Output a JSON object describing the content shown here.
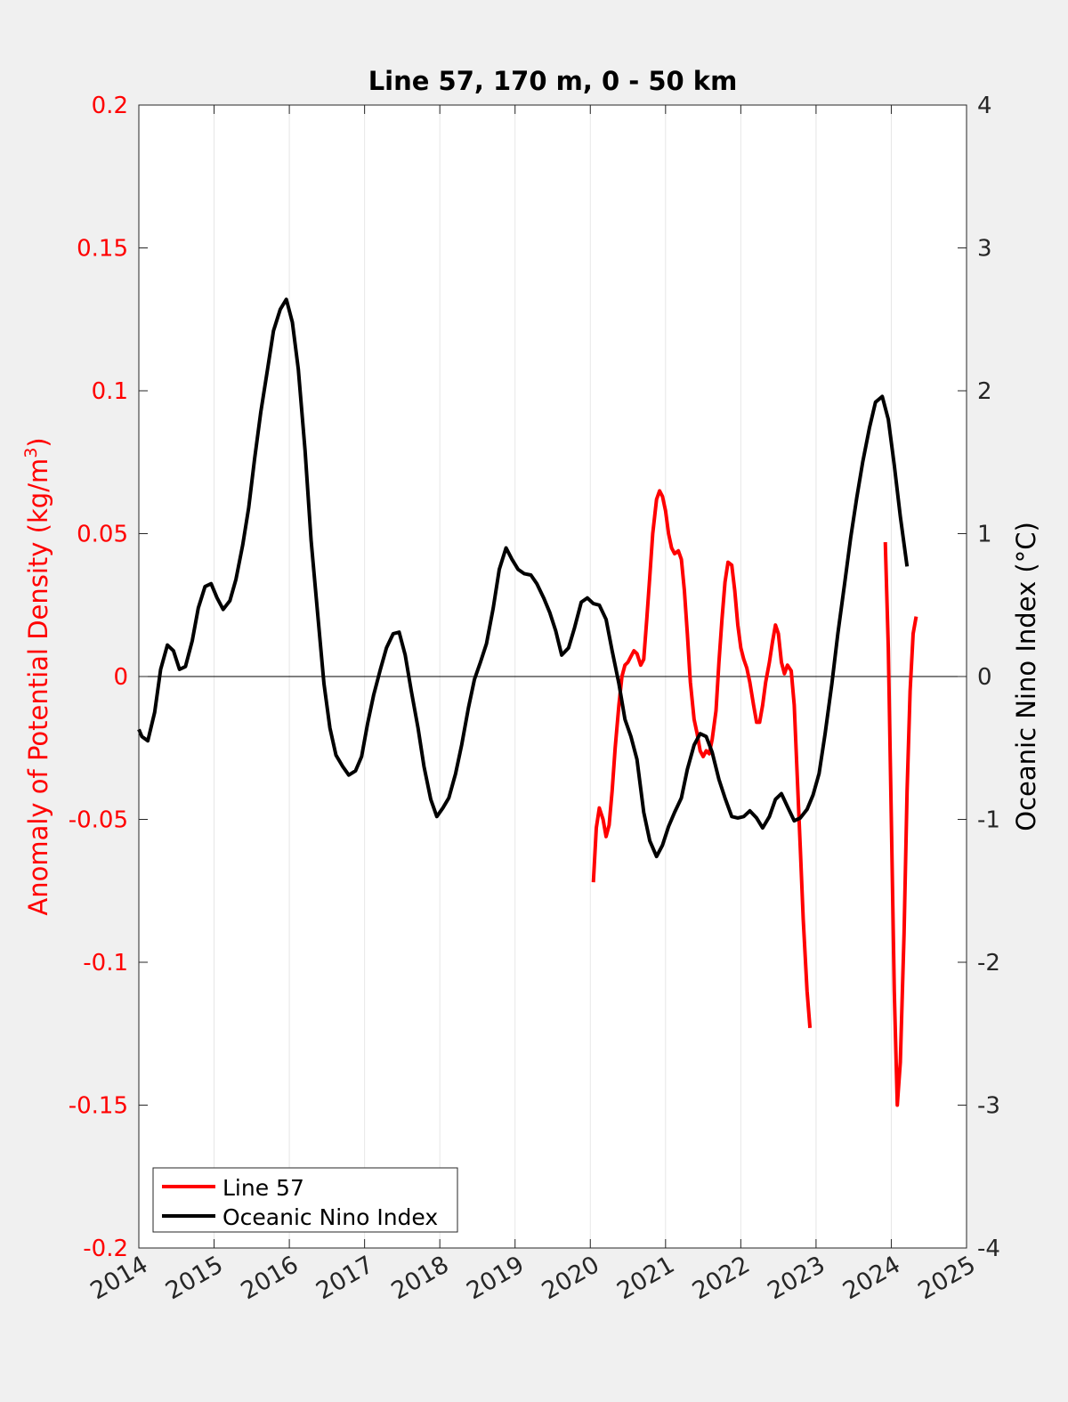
{
  "chart_data": {
    "type": "line",
    "title": "Line 57, 170 m, 0 - 50 km",
    "xlabel": "",
    "xlim": [
      2014,
      2025
    ],
    "xticks": [
      "2014",
      "2015",
      "2016",
      "2017",
      "2018",
      "2019",
      "2020",
      "2021",
      "2022",
      "2023",
      "2024",
      "2025"
    ],
    "y_left": {
      "label": "Anomaly of Potential Density (kg/m",
      "label_sup": "3",
      "label_end": ")",
      "ylim": [
        -0.2,
        0.2
      ],
      "ticks": [
        "-0.2",
        "-0.15",
        "-0.1",
        "-0.05",
        "0",
        "0.05",
        "0.1",
        "0.15",
        "0.2"
      ],
      "color": "#ff0000"
    },
    "y_right": {
      "label": "Oceanic Nino Index (°C)",
      "ylim": [
        -4,
        4
      ],
      "ticks": [
        "-4",
        "-3",
        "-2",
        "-1",
        "0",
        "1",
        "2",
        "3",
        "4"
      ],
      "color": "#000000"
    },
    "grid": "vertical",
    "legend_position": "bottom-left",
    "series": [
      {
        "name": "Line 57",
        "axis": "left",
        "color": "#ff0000",
        "segments": [
          [
            [
              2020.04,
              -0.072
            ],
            [
              2020.08,
              -0.053
            ],
            [
              2020.12,
              -0.046
            ],
            [
              2020.17,
              -0.05
            ],
            [
              2020.21,
              -0.056
            ],
            [
              2020.25,
              -0.052
            ],
            [
              2020.29,
              -0.04
            ],
            [
              2020.33,
              -0.025
            ],
            [
              2020.38,
              -0.01
            ],
            [
              2020.42,
              0.0
            ],
            [
              2020.46,
              0.004
            ],
            [
              2020.5,
              0.005
            ],
            [
              2020.54,
              0.007
            ],
            [
              2020.58,
              0.009
            ],
            [
              2020.62,
              0.008
            ],
            [
              2020.67,
              0.004
            ],
            [
              2020.71,
              0.006
            ],
            [
              2020.75,
              0.02
            ],
            [
              2020.79,
              0.035
            ],
            [
              2020.83,
              0.05
            ],
            [
              2020.88,
              0.062
            ],
            [
              2020.92,
              0.065
            ],
            [
              2020.96,
              0.063
            ],
            [
              2021.0,
              0.058
            ],
            [
              2021.04,
              0.05
            ],
            [
              2021.08,
              0.045
            ],
            [
              2021.12,
              0.043
            ],
            [
              2021.17,
              0.044
            ],
            [
              2021.21,
              0.041
            ],
            [
              2021.25,
              0.03
            ],
            [
              2021.29,
              0.015
            ],
            [
              2021.33,
              -0.002
            ],
            [
              2021.38,
              -0.015
            ],
            [
              2021.42,
              -0.02
            ],
            [
              2021.46,
              -0.026
            ],
            [
              2021.5,
              -0.028
            ],
            [
              2021.54,
              -0.026
            ],
            [
              2021.58,
              -0.027
            ],
            [
              2021.62,
              -0.022
            ],
            [
              2021.67,
              -0.012
            ],
            [
              2021.71,
              0.005
            ],
            [
              2021.75,
              0.02
            ],
            [
              2021.79,
              0.033
            ],
            [
              2021.83,
              0.04
            ],
            [
              2021.88,
              0.039
            ],
            [
              2021.92,
              0.03
            ],
            [
              2021.96,
              0.018
            ],
            [
              2022.0,
              0.01
            ],
            [
              2022.04,
              0.006
            ],
            [
              2022.08,
              0.003
            ],
            [
              2022.12,
              -0.002
            ],
            [
              2022.17,
              -0.01
            ],
            [
              2022.21,
              -0.016
            ],
            [
              2022.25,
              -0.016
            ],
            [
              2022.29,
              -0.01
            ],
            [
              2022.33,
              -0.002
            ],
            [
              2022.38,
              0.005
            ],
            [
              2022.42,
              0.012
            ],
            [
              2022.46,
              0.018
            ],
            [
              2022.5,
              0.015
            ],
            [
              2022.54,
              0.005
            ],
            [
              2022.58,
              0.001
            ],
            [
              2022.62,
              0.004
            ],
            [
              2022.67,
              0.002
            ],
            [
              2022.71,
              -0.01
            ],
            [
              2022.75,
              -0.035
            ],
            [
              2022.79,
              -0.06
            ],
            [
              2022.83,
              -0.085
            ],
            [
              2022.88,
              -0.11
            ],
            [
              2022.92,
              -0.123
            ]
          ],
          [
            [
              2023.92,
              0.047
            ],
            [
              2023.96,
              0.01
            ],
            [
              2024.0,
              -0.05
            ],
            [
              2024.04,
              -0.11
            ],
            [
              2024.08,
              -0.15
            ],
            [
              2024.12,
              -0.135
            ],
            [
              2024.17,
              -0.09
            ],
            [
              2024.21,
              -0.04
            ],
            [
              2024.25,
              -0.005
            ],
            [
              2024.29,
              0.015
            ],
            [
              2024.33,
              0.021
            ]
          ]
        ]
      },
      {
        "name": "Oceanic Nino Index",
        "axis": "right",
        "color": "#000000",
        "segments": [
          [
            [
              2014.0,
              -0.37
            ],
            [
              2014.04,
              -0.42
            ],
            [
              2014.12,
              -0.45
            ],
            [
              2014.21,
              -0.25
            ],
            [
              2014.29,
              0.05
            ],
            [
              2014.38,
              0.22
            ],
            [
              2014.46,
              0.18
            ],
            [
              2014.54,
              0.05
            ],
            [
              2014.62,
              0.07
            ],
            [
              2014.71,
              0.25
            ],
            [
              2014.79,
              0.48
            ],
            [
              2014.88,
              0.63
            ],
            [
              2014.96,
              0.65
            ],
            [
              2015.04,
              0.55
            ],
            [
              2015.12,
              0.47
            ],
            [
              2015.21,
              0.53
            ],
            [
              2015.29,
              0.68
            ],
            [
              2015.38,
              0.92
            ],
            [
              2015.46,
              1.18
            ],
            [
              2015.54,
              1.53
            ],
            [
              2015.62,
              1.85
            ],
            [
              2015.71,
              2.15
            ],
            [
              2015.79,
              2.42
            ],
            [
              2015.88,
              2.57
            ],
            [
              2015.96,
              2.64
            ],
            [
              2016.04,
              2.48
            ],
            [
              2016.12,
              2.15
            ],
            [
              2016.21,
              1.58
            ],
            [
              2016.29,
              0.95
            ],
            [
              2016.38,
              0.42
            ],
            [
              2016.46,
              -0.05
            ],
            [
              2016.54,
              -0.36
            ],
            [
              2016.62,
              -0.55
            ],
            [
              2016.71,
              -0.63
            ],
            [
              2016.79,
              -0.69
            ],
            [
              2016.88,
              -0.66
            ],
            [
              2016.96,
              -0.56
            ],
            [
              2017.04,
              -0.33
            ],
            [
              2017.12,
              -0.13
            ],
            [
              2017.21,
              0.05
            ],
            [
              2017.29,
              0.2
            ],
            [
              2017.38,
              0.3
            ],
            [
              2017.46,
              0.31
            ],
            [
              2017.54,
              0.15
            ],
            [
              2017.62,
              -0.1
            ],
            [
              2017.71,
              -0.36
            ],
            [
              2017.79,
              -0.63
            ],
            [
              2017.88,
              -0.86
            ],
            [
              2017.96,
              -0.98
            ],
            [
              2018.04,
              -0.92
            ],
            [
              2018.12,
              -0.85
            ],
            [
              2018.21,
              -0.68
            ],
            [
              2018.29,
              -0.48
            ],
            [
              2018.38,
              -0.22
            ],
            [
              2018.46,
              -0.02
            ],
            [
              2018.54,
              0.1
            ],
            [
              2018.62,
              0.23
            ],
            [
              2018.71,
              0.48
            ],
            [
              2018.79,
              0.75
            ],
            [
              2018.88,
              0.9
            ],
            [
              2018.96,
              0.82
            ],
            [
              2019.04,
              0.75
            ],
            [
              2019.12,
              0.72
            ],
            [
              2019.21,
              0.71
            ],
            [
              2019.29,
              0.65
            ],
            [
              2019.38,
              0.55
            ],
            [
              2019.46,
              0.45
            ],
            [
              2019.54,
              0.32
            ],
            [
              2019.62,
              0.15
            ],
            [
              2019.71,
              0.2
            ],
            [
              2019.79,
              0.34
            ],
            [
              2019.88,
              0.52
            ],
            [
              2019.96,
              0.55
            ],
            [
              2020.04,
              0.51
            ],
            [
              2020.12,
              0.5
            ],
            [
              2020.21,
              0.4
            ],
            [
              2020.29,
              0.18
            ],
            [
              2020.38,
              -0.05
            ],
            [
              2020.46,
              -0.3
            ],
            [
              2020.54,
              -0.42
            ],
            [
              2020.62,
              -0.58
            ],
            [
              2020.71,
              -0.95
            ],
            [
              2020.79,
              -1.15
            ],
            [
              2020.88,
              -1.26
            ],
            [
              2020.96,
              -1.18
            ],
            [
              2021.04,
              -1.05
            ],
            [
              2021.12,
              -0.95
            ],
            [
              2021.21,
              -0.85
            ],
            [
              2021.29,
              -0.65
            ],
            [
              2021.38,
              -0.48
            ],
            [
              2021.46,
              -0.4
            ],
            [
              2021.54,
              -0.42
            ],
            [
              2021.62,
              -0.53
            ],
            [
              2021.71,
              -0.72
            ],
            [
              2021.79,
              -0.85
            ],
            [
              2021.88,
              -0.98
            ],
            [
              2021.96,
              -0.99
            ],
            [
              2022.04,
              -0.98
            ],
            [
              2022.12,
              -0.94
            ],
            [
              2022.21,
              -0.99
            ],
            [
              2022.29,
              -1.06
            ],
            [
              2022.38,
              -0.98
            ],
            [
              2022.46,
              -0.86
            ],
            [
              2022.54,
              -0.82
            ],
            [
              2022.62,
              -0.91
            ],
            [
              2022.71,
              -1.01
            ],
            [
              2022.79,
              -0.99
            ],
            [
              2022.88,
              -0.93
            ],
            [
              2022.96,
              -0.83
            ],
            [
              2023.04,
              -0.68
            ],
            [
              2023.12,
              -0.4
            ],
            [
              2023.21,
              -0.05
            ],
            [
              2023.29,
              0.3
            ],
            [
              2023.38,
              0.65
            ],
            [
              2023.46,
              0.97
            ],
            [
              2023.54,
              1.25
            ],
            [
              2023.62,
              1.5
            ],
            [
              2023.71,
              1.74
            ],
            [
              2023.79,
              1.92
            ],
            [
              2023.88,
              1.96
            ],
            [
              2023.96,
              1.8
            ],
            [
              2024.04,
              1.48
            ],
            [
              2024.12,
              1.12
            ],
            [
              2024.21,
              0.77
            ]
          ]
        ]
      }
    ]
  }
}
